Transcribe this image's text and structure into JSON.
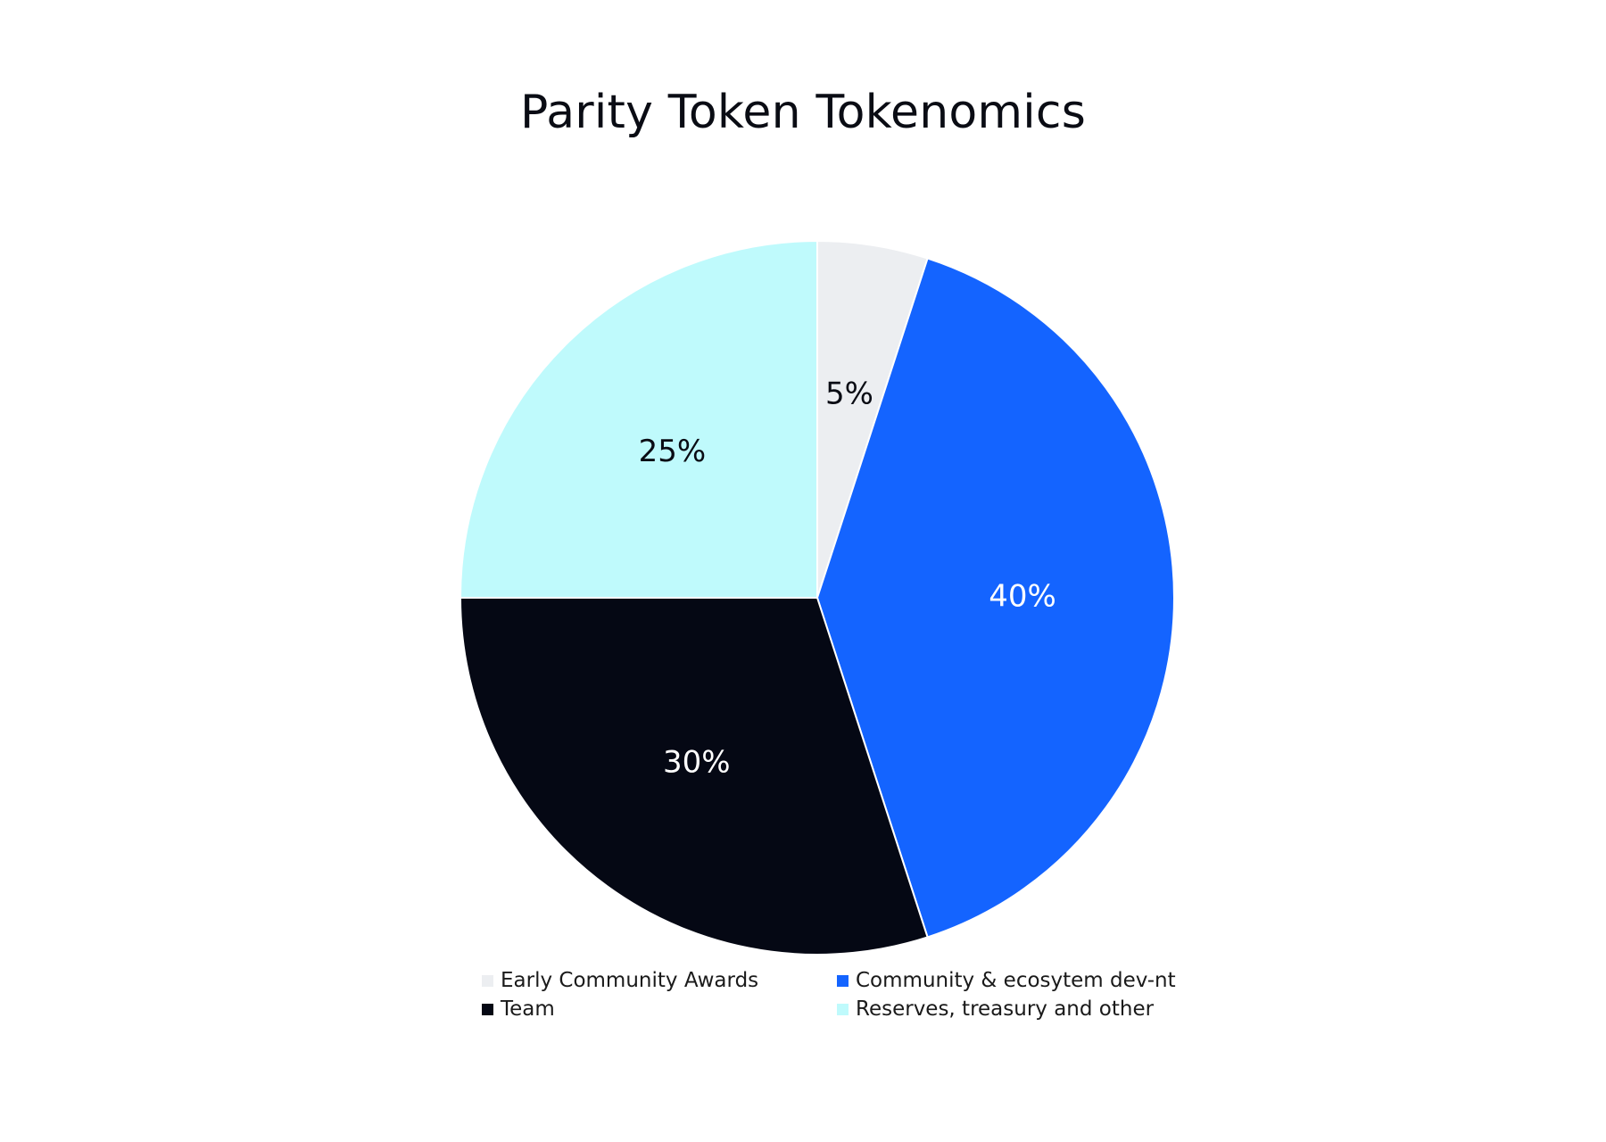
{
  "chart_data": {
    "type": "pie",
    "title": "Parity Token Tokenomics",
    "slices": [
      {
        "name": "Early Community Awards",
        "value": 5,
        "label": "5%",
        "color": "#ECEEF1",
        "label_color": "#0a0c14"
      },
      {
        "name": "Community & ecosytem dev-nt",
        "value": 40,
        "label": "40%",
        "color": "#1464FF",
        "label_color": "#ffffff"
      },
      {
        "name": "Team",
        "value": 30,
        "label": "30%",
        "color": "#050814",
        "label_color": "#ffffff"
      },
      {
        "name": "Reserves, treasury and other",
        "value": 25,
        "label": "25%",
        "color": "#BFFAFC",
        "label_color": "#0a0c14"
      }
    ],
    "start_angle": "12 o'clock",
    "direction": "clockwise",
    "legend": {
      "position": "bottom",
      "order": [
        "Early Community Awards",
        "Community & ecosytem dev-nt",
        "Team",
        "Reserves, treasury and other"
      ]
    }
  }
}
